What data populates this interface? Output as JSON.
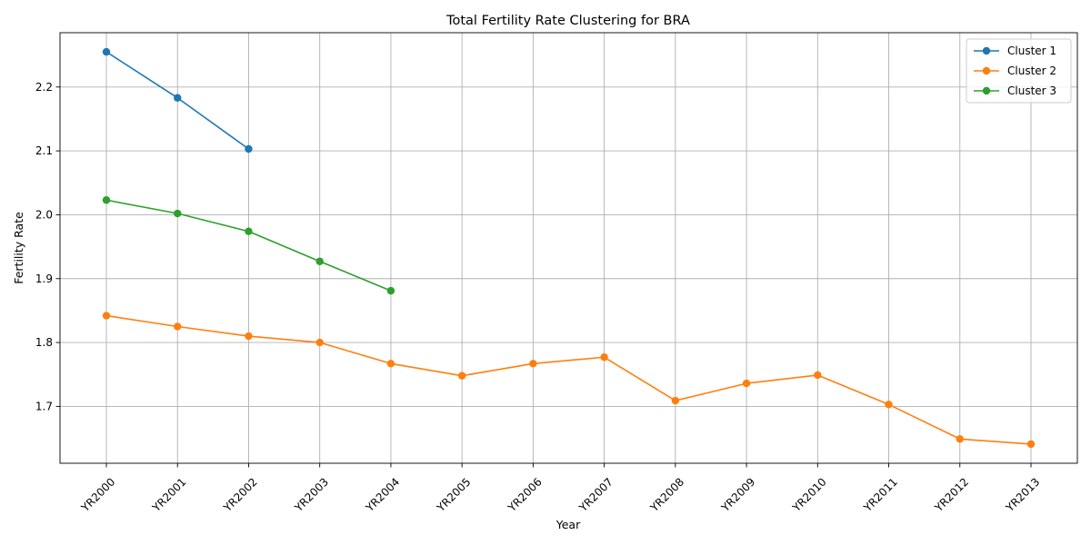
{
  "chart_data": {
    "type": "line",
    "title": "Total Fertility Rate Clustering for BRA",
    "xlabel": "Year",
    "ylabel": "Fertility Rate",
    "categories": [
      "YR2000",
      "YR2001",
      "YR2002",
      "YR2003",
      "YR2004",
      "YR2005",
      "YR2006",
      "YR2007",
      "YR2008",
      "YR2009",
      "YR2010",
      "YR2011",
      "YR2012",
      "YR2013"
    ],
    "ylim": [
      1.611,
      2.285
    ],
    "yticks": [
      1.7,
      1.8,
      1.9,
      2.0,
      2.1,
      2.2
    ],
    "grid": true,
    "legend": "top-right",
    "series": [
      {
        "name": "Cluster 1",
        "color": "#1f77b4",
        "values": [
          2.255,
          2.183,
          2.103,
          null,
          null,
          null,
          null,
          null,
          null,
          null,
          null,
          null,
          null,
          null
        ]
      },
      {
        "name": "Cluster 2",
        "color": "#ff7f0e",
        "values": [
          1.842,
          1.825,
          1.81,
          1.8,
          1.767,
          1.748,
          1.767,
          1.777,
          1.709,
          1.736,
          1.749,
          1.703,
          1.649,
          1.641
        ]
      },
      {
        "name": "Cluster 3",
        "color": "#2ca02c",
        "values": [
          2.023,
          2.002,
          1.974,
          1.927,
          1.881,
          null,
          null,
          null,
          null,
          null,
          null,
          null,
          null,
          null
        ]
      }
    ]
  }
}
